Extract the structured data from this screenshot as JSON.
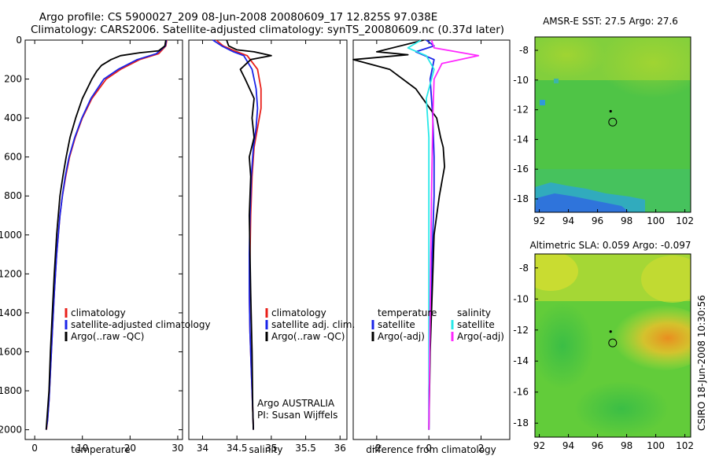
{
  "header": {
    "line1": "Argo profile: CS 5900027_209 08-Jun-2008 20080609_17 12.825S 97.038E",
    "line2": "Climatology: CARS2006. Satellite-adjusted climatology: synTS_20080609.nc (0.37d later)"
  },
  "credit": "CSIRO 18-Jun-2008 10:30:56",
  "colors": {
    "climatology": "#e8201a",
    "satellite": "#1a24e8",
    "argo": "#000000",
    "satellite_salinity": "#28e8e8",
    "argo_adj_salinity": "#ff28ff",
    "axis": "#000000"
  },
  "chart_data": [
    {
      "type": "line",
      "id": "temperature",
      "title": "",
      "xlabel": "temperature",
      "ylabel": "",
      "xlim": [
        -2,
        31
      ],
      "ylim": [
        0,
        2050
      ],
      "y_inverted": true,
      "xticks": [
        0,
        10,
        20,
        30
      ],
      "yticks": [
        0,
        200,
        400,
        600,
        800,
        1000,
        1200,
        1400,
        1600,
        1800,
        2000
      ],
      "legend": [
        "climatology",
        "satellite-adjusted climatology",
        "Argo(..raw -QC)"
      ],
      "series": [
        {
          "name": "climatology",
          "color_key": "climatology",
          "x": [
            27.7,
            27.5,
            26,
            22,
            18,
            15,
            12,
            10,
            8.5,
            7.3,
            6.5,
            5.8,
            5.3,
            4.6,
            4.1,
            3.7,
            3.3,
            3.0,
            2.7,
            2.45
          ],
          "y": [
            0,
            30,
            70,
            100,
            150,
            200,
            300,
            400,
            500,
            600,
            700,
            800,
            900,
            1100,
            1300,
            1500,
            1700,
            1850,
            1950,
            2000
          ]
        },
        {
          "name": "satellite",
          "color_key": "satellite",
          "x": [
            27.6,
            27.4,
            25.5,
            21.5,
            17.5,
            14.5,
            11.8,
            9.9,
            8.4,
            7.2,
            6.4,
            5.8,
            5.3,
            4.6,
            4.1,
            3.7,
            3.3,
            3.0,
            2.7,
            2.4
          ],
          "y": [
            0,
            30,
            70,
            100,
            150,
            200,
            300,
            400,
            500,
            600,
            700,
            800,
            900,
            1100,
            1300,
            1500,
            1700,
            1850,
            1950,
            2000
          ]
        },
        {
          "name": "Argo",
          "color_key": "argo",
          "x": [
            27.5,
            27.3,
            26,
            22,
            18,
            16,
            14,
            13,
            12,
            10,
            8.6,
            7.4,
            6.6,
            5.9,
            5.3,
            4.6,
            4.1,
            3.7,
            3.3,
            3.0,
            2.7,
            2.4
          ],
          "y": [
            0,
            30,
            55,
            65,
            80,
            100,
            130,
            160,
            200,
            300,
            400,
            500,
            600,
            700,
            800,
            1000,
            1200,
            1400,
            1600,
            1800,
            1900,
            2000
          ]
        }
      ]
    },
    {
      "type": "line",
      "id": "salinity",
      "title": "",
      "xlabel": "salinity",
      "ylabel": "",
      "xlim": [
        33.8,
        36.1
      ],
      "ylim": [
        0,
        2050
      ],
      "y_inverted": true,
      "xticks": [
        34,
        34.5,
        35,
        35.5,
        36
      ],
      "legend": [
        "climatology",
        "satellite adj. clim.",
        "Argo(..raw -QC)"
      ],
      "annotation": [
        "Argo AUSTRALIA",
        "PI: Susan Wijffels"
      ],
      "series": [
        {
          "name": "climatology",
          "color_key": "climatology",
          "x": [
            34.2,
            34.3,
            34.5,
            34.65,
            34.8,
            34.85,
            34.85,
            34.8,
            34.75,
            34.72,
            34.7,
            34.69,
            34.68,
            34.69,
            34.71,
            34.73,
            34.74
          ],
          "y": [
            0,
            30,
            60,
            80,
            150,
            250,
            350,
            450,
            550,
            700,
            900,
            1100,
            1300,
            1500,
            1700,
            1900,
            2000
          ]
        },
        {
          "name": "satellite",
          "color_key": "satellite",
          "x": [
            34.15,
            34.28,
            34.45,
            34.6,
            34.72,
            34.78,
            34.8,
            34.78,
            34.74,
            34.71,
            34.69,
            34.68,
            34.68,
            34.69,
            34.71,
            34.73,
            34.74
          ],
          "y": [
            0,
            30,
            60,
            80,
            150,
            250,
            350,
            450,
            550,
            700,
            900,
            1100,
            1300,
            1500,
            1700,
            1900,
            2000
          ]
        },
        {
          "name": "Argo",
          "color_key": "argo",
          "x": [
            34.35,
            34.38,
            34.5,
            34.75,
            35.0,
            34.7,
            34.55,
            34.62,
            34.75,
            34.72,
            34.75,
            34.68,
            34.7,
            34.68,
            34.69,
            34.7,
            34.72,
            34.73,
            34.74
          ],
          "y": [
            0,
            30,
            50,
            60,
            80,
            100,
            150,
            200,
            300,
            400,
            500,
            600,
            700,
            900,
            1100,
            1300,
            1600,
            1900,
            2000
          ]
        }
      ]
    },
    {
      "type": "line",
      "id": "difference",
      "title": "",
      "xlabel": "difference from climatology",
      "ylabel": "",
      "xlim": [
        -2.9,
        3.1
      ],
      "ylim": [
        0,
        2050
      ],
      "y_inverted": true,
      "xticks": [
        -2,
        0,
        2
      ],
      "legend_groups": [
        {
          "title": "temperature",
          "items": [
            "satellite",
            "Argo(-adj)"
          ]
        },
        {
          "title": "salinity",
          "items": [
            "satellite",
            "Argo(-adj)"
          ]
        }
      ],
      "series": [
        {
          "name": "temperature satellite",
          "color_key": "satellite",
          "x": [
            -0.1,
            0.2,
            -0.5,
            0.2,
            0.05,
            0.1,
            0.15,
            0.2,
            0.2,
            0.15,
            0.1,
            0.05,
            0.0,
            0.0
          ],
          "y": [
            0,
            30,
            60,
            100,
            200,
            300,
            400,
            600,
            800,
            1000,
            1200,
            1500,
            1800,
            2000
          ]
        },
        {
          "name": "temperature Argo",
          "color_key": "argo",
          "x": [
            -0.2,
            -2.0,
            -0.8,
            -2.9,
            -1.5,
            -0.5,
            0.3,
            0.45,
            0.55,
            0.6,
            0.4,
            0.3,
            0.2,
            0.15,
            0.05,
            0.0
          ],
          "y": [
            0,
            60,
            75,
            100,
            150,
            250,
            400,
            500,
            550,
            650,
            800,
            900,
            1000,
            1200,
            1600,
            2000
          ]
        },
        {
          "name": "salinity satellite",
          "color_key": "satellite_salinity",
          "x": [
            -0.3,
            -0.8,
            -0.1,
            0.2,
            -0.1,
            0.0,
            0.0,
            0.0,
            0.0,
            0.0
          ],
          "y": [
            0,
            40,
            80,
            150,
            300,
            500,
            800,
            1200,
            1600,
            2000
          ]
        },
        {
          "name": "salinity Argo",
          "color_key": "argo_adj_salinity",
          "x": [
            0.1,
            0.2,
            1.9,
            0.5,
            0.2,
            0.15,
            0.1,
            0.05,
            0.0
          ],
          "y": [
            0,
            40,
            80,
            120,
            200,
            400,
            800,
            1400,
            2000
          ]
        }
      ]
    },
    {
      "type": "heatmap",
      "id": "sst_map",
      "title": "AMSR-E SST: 27.5 Argo: 27.6",
      "xlim": [
        91.7,
        102.4
      ],
      "ylim": [
        -18.9,
        -7.1
      ],
      "xticks": [
        92,
        94,
        96,
        98,
        100,
        102
      ],
      "yticks": [
        -8,
        -10,
        -12,
        -14,
        -16,
        -18
      ],
      "argo_position": {
        "lon": 97.04,
        "lat": -12.83
      },
      "previous_position": {
        "lon": 96.9,
        "lat": -12.1
      }
    },
    {
      "type": "heatmap",
      "id": "sla_map",
      "title": "Altimetric SLA: 0.059 Argo: -0.097",
      "xlim": [
        91.7,
        102.4
      ],
      "ylim": [
        -18.9,
        -7.1
      ],
      "xticks": [
        92,
        94,
        96,
        98,
        100,
        102
      ],
      "yticks": [
        -8,
        -10,
        -12,
        -14,
        -16,
        -18
      ],
      "argo_position": {
        "lon": 97.04,
        "lat": -12.83
      },
      "previous_position": {
        "lon": 96.9,
        "lat": -12.1
      }
    }
  ]
}
